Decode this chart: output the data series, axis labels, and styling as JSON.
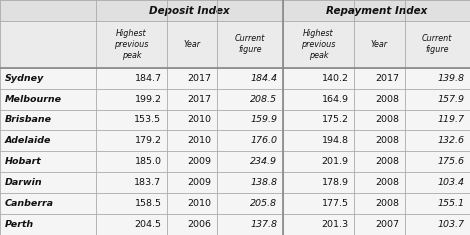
{
  "cities": [
    "Sydney",
    "Melbourne",
    "Brisbane",
    "Adelaide",
    "Hobart",
    "Darwin",
    "Canberra",
    "Perth"
  ],
  "deposit_hpp": [
    184.7,
    199.2,
    153.5,
    179.2,
    185.0,
    183.7,
    158.5,
    204.5
  ],
  "deposit_yr": [
    2017,
    2017,
    2010,
    2010,
    2009,
    2009,
    2010,
    2006
  ],
  "deposit_cf": [
    184.4,
    208.5,
    159.9,
    176.0,
    234.9,
    138.8,
    205.8,
    137.8
  ],
  "repay_hpp": [
    140.2,
    164.9,
    175.2,
    194.8,
    201.9,
    178.9,
    177.5,
    201.3
  ],
  "repay_yr": [
    2017,
    2008,
    2008,
    2008,
    2008,
    2008,
    2008,
    2007
  ],
  "repay_cf": [
    139.8,
    157.9,
    119.7,
    132.6,
    175.6,
    103.4,
    155.1,
    103.7
  ],
  "header1": "Deposit Index",
  "header2": "Repayment Index",
  "bg_header": "#e0e0e0",
  "bg_subheader": "#ebebeb",
  "bg_data": "#f5f5f5",
  "border_color": "#aaaaaa",
  "text_color": "#111111"
}
